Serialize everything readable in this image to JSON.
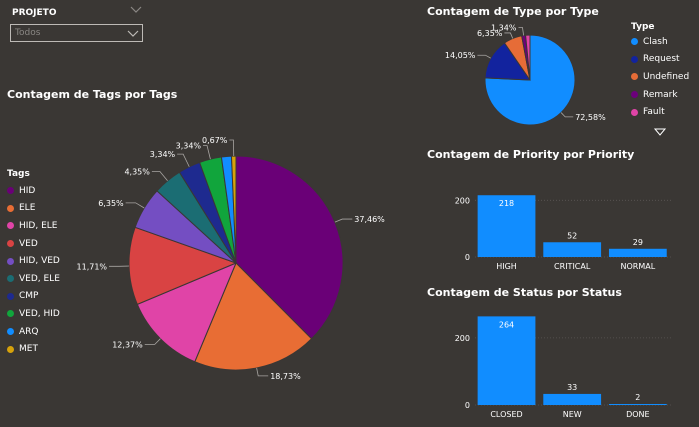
{
  "slicer": {
    "label": "PROJETO",
    "value": "Todos"
  },
  "colors": {
    "HID": "#6a0077",
    "ELE": "#e86d34",
    "HID, ELE": "#e044a7",
    "VED": "#d94343",
    "HID, VED": "#744ec2",
    "VED, ELE": "#1b6d73",
    "CMP": "#1e2a8f",
    "VED, HID": "#11a53c",
    "ARQ": "#118dff",
    "MET": "#d6a20b",
    "Clash": "#118dff",
    "Request": "#12239e",
    "Undefined": "#e66c37",
    "Remark": "#6b007b",
    "Fault": "#e044a7",
    "bar": "#118dff"
  },
  "tags_chart": {
    "title": "Contagem de Tags por Tags",
    "legend_title": "Tags",
    "legend": [
      "HID",
      "ELE",
      "HID, ELE",
      "VED",
      "HID, VED",
      "VED, ELE",
      "CMP",
      "VED, HID",
      "ARQ",
      "MET"
    ]
  },
  "type_chart": {
    "title": "Contagem de Type por Type",
    "legend_title": "Type",
    "legend": [
      "Clash",
      "Request",
      "Undefined",
      "Remark",
      "Fault"
    ]
  },
  "priority_chart": {
    "title": "Contagem de Priority por Priority"
  },
  "status_chart": {
    "title": "Contagem de Status por Status"
  },
  "chart_data": [
    {
      "type": "pie",
      "title": "Contagem de Tags por Tags",
      "legend_title": "Tags",
      "slices": [
        {
          "label": "HID",
          "value": 37.46,
          "text": "37,46%"
        },
        {
          "label": "ELE",
          "value": 18.73,
          "text": "18,73%"
        },
        {
          "label": "HID, ELE",
          "value": 12.37,
          "text": "12,37%"
        },
        {
          "label": "VED",
          "value": 11.71,
          "text": "11,71%"
        },
        {
          "label": "HID, VED",
          "value": 6.35,
          "text": "6,35%"
        },
        {
          "label": "VED, ELE",
          "value": 4.35,
          "text": "4,35%"
        },
        {
          "label": "CMP",
          "value": 3.34,
          "text": "3,34%"
        },
        {
          "label": "VED, HID",
          "value": 3.34,
          "text": "3,34%"
        },
        {
          "label": "ARQ",
          "value": 1.5,
          "text": ""
        },
        {
          "label": "MET",
          "value": 0.67,
          "text": "0,67%"
        }
      ]
    },
    {
      "type": "pie",
      "title": "Contagem de Type por Type",
      "legend_title": "Type",
      "slices": [
        {
          "label": "Clash",
          "value": 72.58,
          "text": "72,58%"
        },
        {
          "label": "Request",
          "value": 14.05,
          "text": "14,05%"
        },
        {
          "label": "Undefined",
          "value": 6.35,
          "text": "6,35%"
        },
        {
          "label": "Remark",
          "value": 1.34,
          "text": "1,34%"
        },
        {
          "label": "Fault",
          "value": 1.5,
          "text": ""
        }
      ]
    },
    {
      "type": "bar",
      "title": "Contagem de Priority por Priority",
      "categories": [
        "HIGH",
        "CRITICAL",
        "NORMAL"
      ],
      "values": [
        218,
        52,
        29
      ],
      "yticks": [
        0,
        200
      ],
      "ylim": [
        0,
        240
      ]
    },
    {
      "type": "bar",
      "title": "Contagem de Status por Status",
      "categories": [
        "CLOSED",
        "NEW",
        "DONE"
      ],
      "values": [
        264,
        33,
        2
      ],
      "yticks": [
        0,
        200
      ],
      "ylim": [
        0,
        280
      ]
    }
  ]
}
